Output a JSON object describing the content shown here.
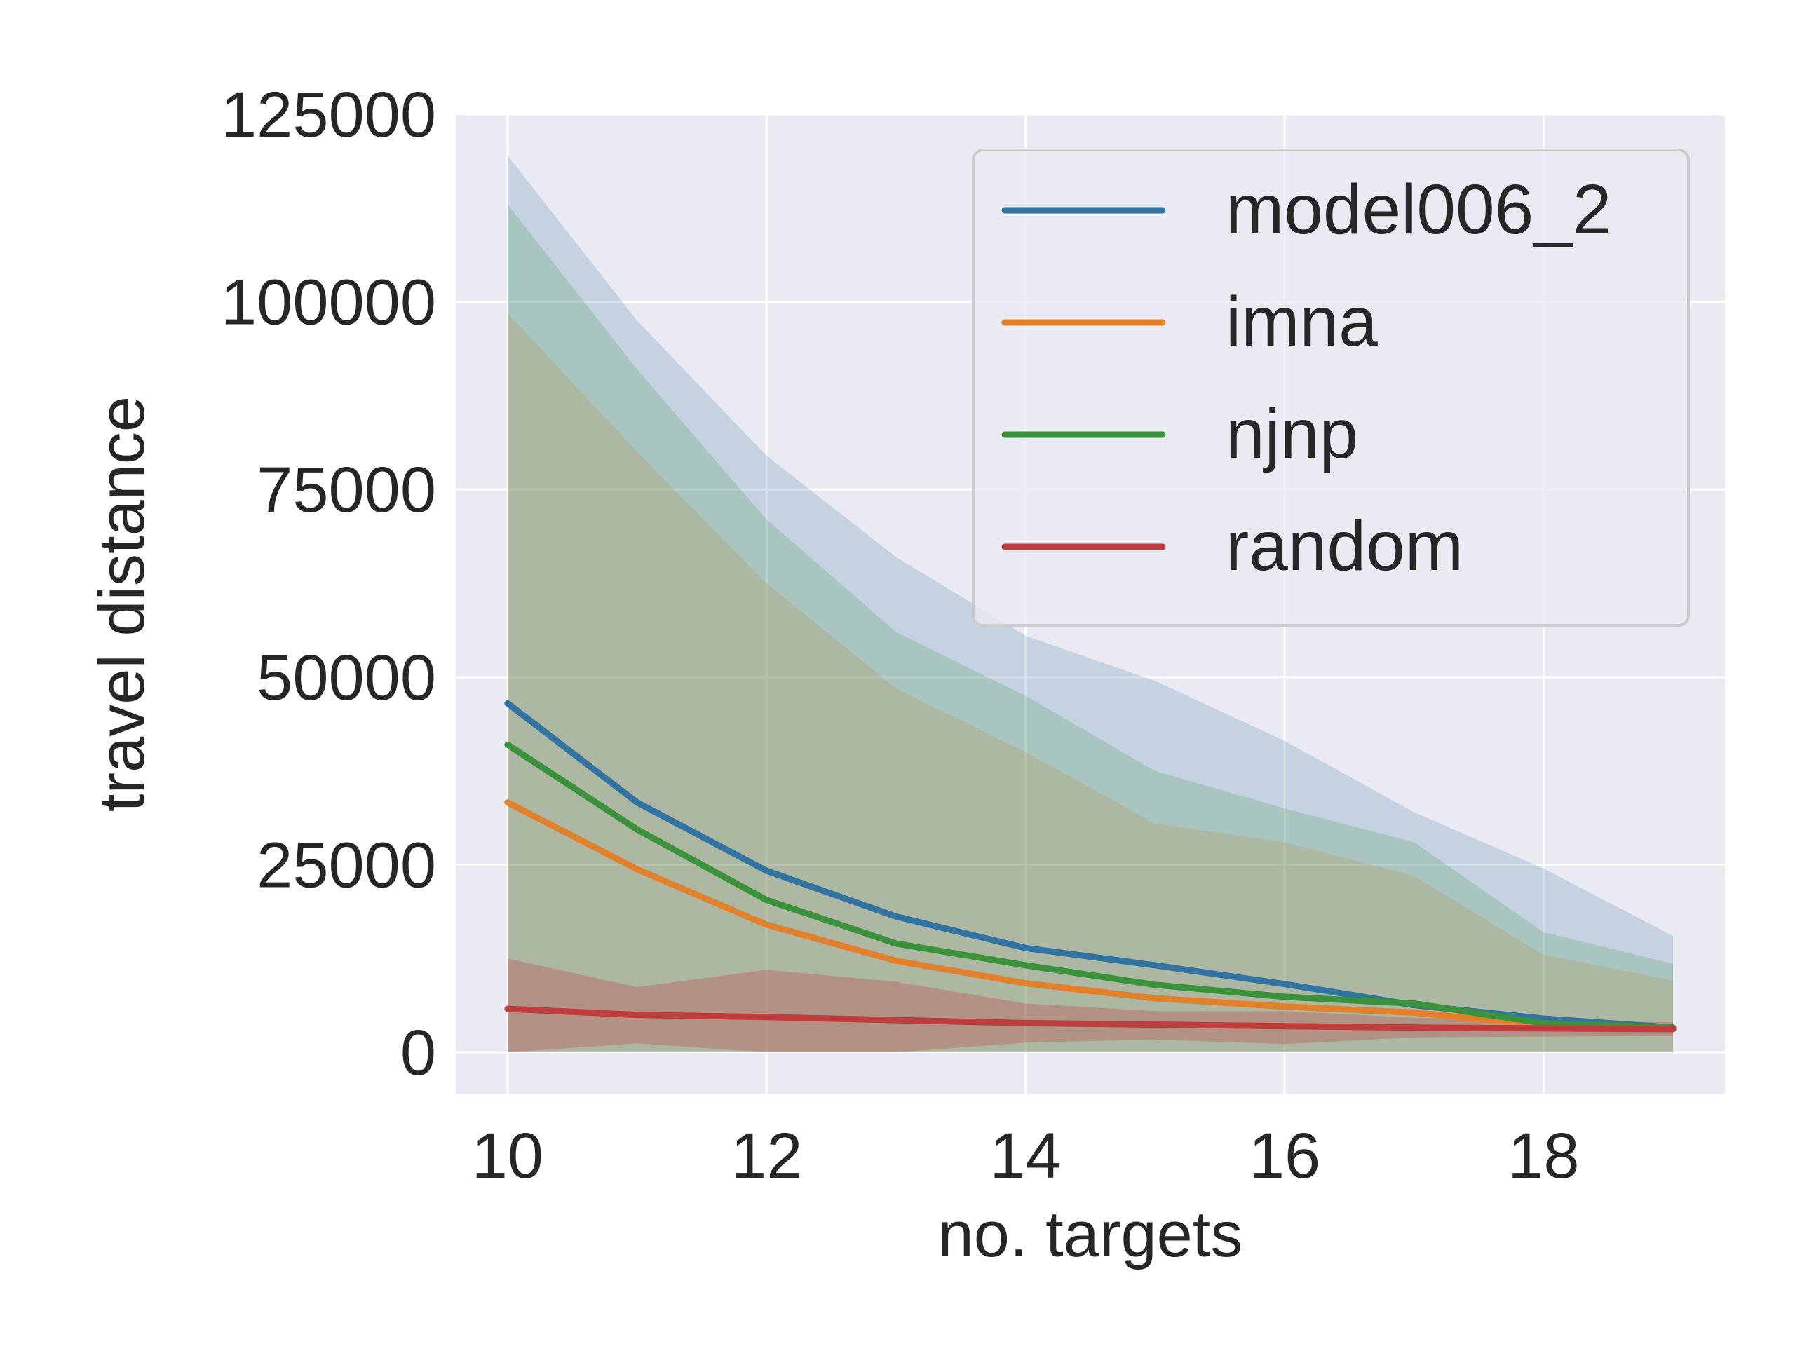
{
  "chart_data": {
    "type": "line",
    "xlabel": "no. targets",
    "ylabel": "travel distance",
    "xlim": [
      9.6,
      19.4
    ],
    "ylim": [
      -5500,
      125000
    ],
    "xticks": [
      10,
      12,
      14,
      16,
      18
    ],
    "yticks": [
      0,
      25000,
      50000,
      75000,
      100000,
      125000
    ],
    "xtick_labels": [
      "10",
      "12",
      "14",
      "16",
      "18"
    ],
    "ytick_labels": [
      "0",
      "25000",
      "50000",
      "75000",
      "100000",
      "125000"
    ],
    "grid": true,
    "legend_position": "top-right",
    "x": [
      10,
      11,
      12,
      13,
      14,
      15,
      16,
      17,
      18,
      19
    ],
    "series": [
      {
        "name": "model006_2",
        "color": "#3274a1",
        "band_alpha": 0.2,
        "values": [
          46500,
          33300,
          24200,
          18100,
          13900,
          11600,
          9100,
          6300,
          4500,
          3300
        ],
        "upper": [
          119500,
          97500,
          79500,
          66000,
          55500,
          49500,
          41500,
          32000,
          24500,
          15500
        ],
        "lower": [
          0,
          0,
          0,
          0,
          0,
          0,
          0,
          0,
          0,
          0
        ]
      },
      {
        "name": "imna",
        "color": "#e1812c",
        "band_alpha": 0.2,
        "values": [
          33300,
          24400,
          17000,
          12200,
          9200,
          7200,
          6100,
          5300,
          3600,
          3100
        ],
        "upper": [
          98500,
          80000,
          62500,
          48500,
          40000,
          30500,
          28000,
          23500,
          13000,
          9600
        ],
        "lower": [
          0,
          0,
          0,
          0,
          0,
          0,
          0,
          0,
          0,
          0
        ]
      },
      {
        "name": "njnp",
        "color": "#3a923a",
        "band_alpha": 0.2,
        "values": [
          41000,
          29700,
          20300,
          14500,
          11600,
          9000,
          7400,
          6500,
          3900,
          3300
        ],
        "upper": [
          113000,
          91000,
          71000,
          56000,
          47500,
          37500,
          32500,
          28000,
          16000,
          11800
        ],
        "lower": [
          0,
          0,
          0,
          0,
          0,
          0,
          0,
          0,
          0,
          0
        ]
      },
      {
        "name": "random",
        "color": "#c03d3e",
        "band_alpha": 0.3,
        "values": [
          5800,
          5000,
          4700,
          4300,
          3900,
          3700,
          3500,
          3300,
          3200,
          3100
        ],
        "upper": [
          12500,
          8700,
          11000,
          9400,
          6500,
          5500,
          5500,
          4600,
          4300,
          4000
        ],
        "lower": [
          0,
          1200,
          0,
          0,
          1300,
          1700,
          1100,
          2000,
          2100,
          2200
        ]
      }
    ]
  }
}
